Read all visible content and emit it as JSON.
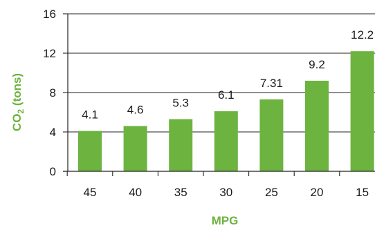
{
  "chart_data": {
    "type": "bar",
    "title": "",
    "xlabel": "MPG",
    "ylabel_main": "CO",
    "ylabel_sub": "2",
    "ylabel_rest": " (tons)",
    "categories": [
      "45",
      "40",
      "35",
      "30",
      "25",
      "20",
      "15"
    ],
    "values": [
      4.1,
      4.6,
      5.3,
      6.1,
      7.31,
      9.2,
      12.2
    ],
    "value_labels": [
      "4.1",
      "4.6",
      "5.3",
      "6.1",
      "7.31",
      "9.2",
      "12.2"
    ],
    "ylim": [
      0,
      16
    ],
    "yticks": [
      "0",
      "4",
      "8",
      "12",
      "16"
    ],
    "grid": true,
    "legend": "none",
    "bar_color": "#6db33f",
    "axis_title_color": "#6db33f"
  }
}
